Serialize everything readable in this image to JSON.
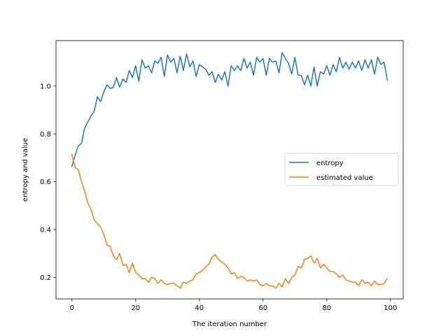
{
  "chart_data": {
    "type": "line",
    "title": "",
    "xlabel": "The iteration number",
    "ylabel": "entropy and value",
    "xlim": [
      -5,
      104
    ],
    "ylim": [
      0.11,
      1.19
    ],
    "xticks": [
      0,
      20,
      40,
      60,
      80,
      100
    ],
    "yticks": [
      0.2,
      0.4,
      0.6,
      0.8,
      1.0
    ],
    "grid": false,
    "legend": {
      "placement": "center-right"
    },
    "x": [
      0,
      1,
      2,
      3,
      4,
      5,
      6,
      7,
      8,
      9,
      10,
      11,
      12,
      13,
      14,
      15,
      16,
      17,
      18,
      19,
      20,
      21,
      22,
      23,
      24,
      25,
      26,
      27,
      28,
      29,
      30,
      31,
      32,
      33,
      34,
      35,
      36,
      37,
      38,
      39,
      40,
      41,
      42,
      43,
      44,
      45,
      46,
      47,
      48,
      49,
      50,
      51,
      52,
      53,
      54,
      55,
      56,
      57,
      58,
      59,
      60,
      61,
      62,
      63,
      64,
      65,
      66,
      67,
      68,
      69,
      70,
      71,
      72,
      73,
      74,
      75,
      76,
      77,
      78,
      79,
      80,
      81,
      82,
      83,
      84,
      85,
      86,
      87,
      88,
      89,
      90,
      91,
      92,
      93,
      94,
      95,
      96,
      97,
      98,
      99
    ],
    "series": [
      {
        "name": "entropy",
        "color": "#1f77b4",
        "values": [
          0.665,
          0.71,
          0.75,
          0.76,
          0.825,
          0.85,
          0.875,
          0.895,
          0.955,
          0.935,
          0.975,
          1.005,
          0.99,
          0.995,
          1.035,
          0.995,
          1.03,
          1.015,
          1.065,
          1.035,
          1.085,
          1.02,
          1.11,
          1.075,
          1.085,
          1.055,
          1.105,
          1.095,
          1.12,
          1.04,
          1.13,
          1.1,
          1.115,
          1.055,
          1.125,
          1.065,
          1.135,
          1.08,
          1.105,
          1.04,
          1.09,
          1.08,
          1.07,
          1.045,
          1.06,
          1.015,
          1.05,
          1.025,
          1.06,
          1.0,
          1.085,
          1.065,
          1.085,
          1.065,
          1.115,
          1.075,
          1.1,
          1.045,
          1.12,
          1.1,
          1.115,
          1.045,
          1.115,
          1.1,
          1.105,
          1.055,
          1.14,
          1.115,
          1.095,
          1.05,
          1.12,
          1.045,
          1.045,
          1.005,
          1.045,
          1.0,
          1.08,
          1.0,
          1.06,
          1.05,
          1.085,
          1.045,
          1.09,
          1.06,
          1.12,
          1.075,
          1.1,
          1.07,
          1.1,
          1.075,
          1.105,
          1.065,
          1.11,
          1.075,
          1.11,
          1.05,
          1.12,
          1.09,
          1.1,
          1.025
        ]
      },
      {
        "name": "estimated value",
        "color": "#ff7f0e",
        "values": [
          0.715,
          0.66,
          0.65,
          0.6,
          0.56,
          0.51,
          0.485,
          0.44,
          0.425,
          0.41,
          0.38,
          0.335,
          0.33,
          0.29,
          0.275,
          0.3,
          0.25,
          0.255,
          0.22,
          0.26,
          0.22,
          0.21,
          0.195,
          0.195,
          0.18,
          0.2,
          0.195,
          0.175,
          0.19,
          0.175,
          0.17,
          0.175,
          0.175,
          0.165,
          0.155,
          0.18,
          0.175,
          0.185,
          0.19,
          0.215,
          0.22,
          0.23,
          0.245,
          0.255,
          0.285,
          0.295,
          0.275,
          0.265,
          0.255,
          0.24,
          0.215,
          0.22,
          0.195,
          0.205,
          0.2,
          0.185,
          0.19,
          0.185,
          0.19,
          0.17,
          0.165,
          0.175,
          0.165,
          0.165,
          0.155,
          0.175,
          0.16,
          0.195,
          0.175,
          0.2,
          0.21,
          0.245,
          0.24,
          0.275,
          0.28,
          0.29,
          0.26,
          0.28,
          0.24,
          0.255,
          0.24,
          0.225,
          0.225,
          0.215,
          0.2,
          0.21,
          0.19,
          0.185,
          0.18,
          0.18,
          0.165,
          0.19,
          0.175,
          0.18,
          0.165,
          0.185,
          0.17,
          0.17,
          0.175,
          0.195
        ]
      }
    ]
  }
}
